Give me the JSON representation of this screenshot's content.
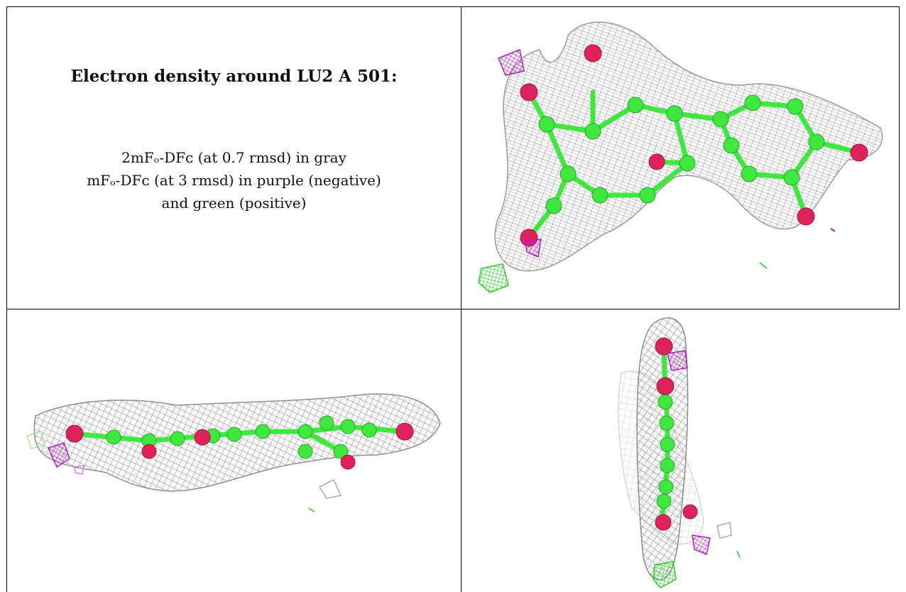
{
  "caption": {
    "title": "Electron density around LU2 A 501:",
    "line1": "2mFₒ-DFᴄ (at 0.7 rmsd) in gray",
    "line2": "mFₒ-DFᴄ (at 3 rmsd) in purple (negative)",
    "line3": "and green (positive)"
  },
  "colors": {
    "mesh_gray": "#8a8a8a",
    "mesh_light": "#c8c8c8",
    "atom_green": "#3ee83e",
    "atom_red": "#e0225a",
    "mesh_purple": "#b01cc8",
    "mesh_green": "#22d022",
    "border": "#000000"
  },
  "panels": [
    {
      "name": "top-view"
    },
    {
      "name": "side-view"
    },
    {
      "name": "end-view"
    }
  ]
}
